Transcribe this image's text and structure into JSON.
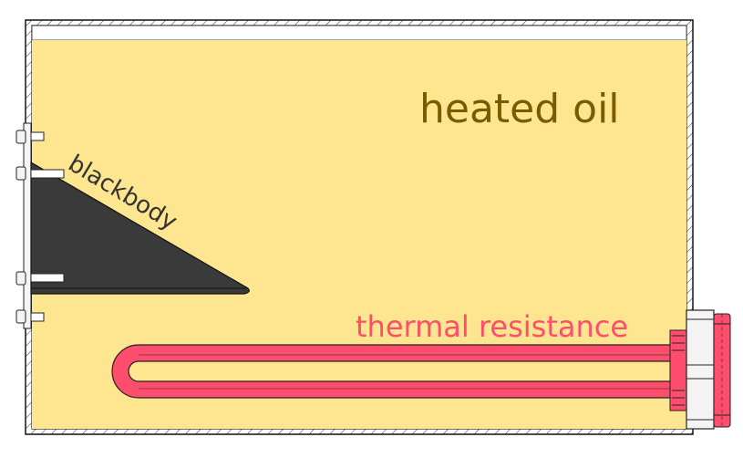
{
  "labels": {
    "heated_oil": "heated oil",
    "blackbody": "blackbody",
    "thermal_resistance": "thermal resistance"
  },
  "colors": {
    "oil": "#fde68f",
    "oil_label": "#7a5c00",
    "blackbody_fill": "#3a3a3a",
    "blackbody_label": "#333333",
    "resistance": "#ff4d6d",
    "resistance_label": "#ff4d6d",
    "outline": "#222222",
    "fitting": "#f4f4f4"
  }
}
